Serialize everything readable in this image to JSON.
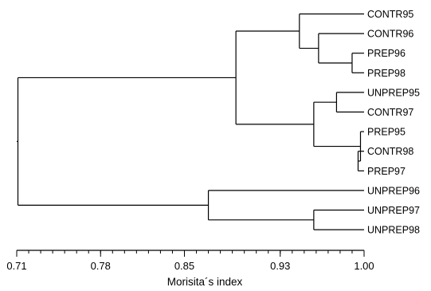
{
  "chart_data": {
    "type": "dendrogram",
    "xlabel": "Morisita´s index",
    "xlim": [
      0.71,
      1.0
    ],
    "ticks": [
      {
        "value": 0.71,
        "label": "0.71"
      },
      {
        "value": 0.78,
        "label": "0.78"
      },
      {
        "value": 0.85,
        "label": "0.85"
      },
      {
        "value": 0.93,
        "label": "0.93"
      },
      {
        "value": 1.0,
        "label": "1.00"
      }
    ],
    "leaves": [
      "CONTR95",
      "CONTR96",
      "PREP96",
      "PREP98",
      "UNPREP95",
      "CONTR97",
      "PREP95",
      "CONTR98",
      "PREP97",
      "UNPREP96",
      "UNPREP97",
      "UNPREP98"
    ],
    "merges": [
      {
        "id": "m1",
        "children": [
          "CONTR98",
          "PREP97"
        ],
        "similarity": 0.995
      },
      {
        "id": "m2",
        "children": [
          "PREP95",
          "m1"
        ],
        "similarity": 0.997
      },
      {
        "id": "m3",
        "children": [
          "PREP96",
          "PREP98"
        ],
        "similarity": 0.99
      },
      {
        "id": "m4",
        "children": [
          "UNPREP95",
          "CONTR97"
        ],
        "similarity": 0.977
      },
      {
        "id": "m5",
        "children": [
          "UNPREP97",
          "UNPREP98"
        ],
        "similarity": 0.958
      },
      {
        "id": "m6",
        "children": [
          "CONTR96",
          "m3"
        ],
        "similarity": 0.962
      },
      {
        "id": "m7",
        "children": [
          "m4",
          "m2"
        ],
        "similarity": 0.958
      },
      {
        "id": "m8",
        "children": [
          "CONTR95",
          "m6"
        ],
        "similarity": 0.946
      },
      {
        "id": "m9",
        "children": [
          "UNPREP96",
          "m5"
        ],
        "similarity": 0.87
      },
      {
        "id": "m10",
        "children": [
          "m8",
          "m7"
        ],
        "similarity": 0.893
      },
      {
        "id": "m11",
        "children": [
          "m10",
          "m9"
        ],
        "similarity": 0.711
      }
    ]
  }
}
